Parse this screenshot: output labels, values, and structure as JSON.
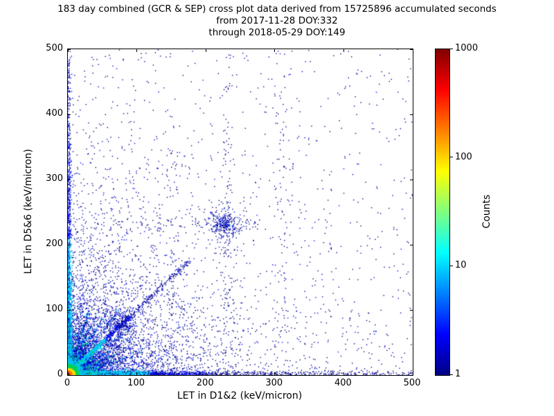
{
  "chart_data": {
    "type": "scatter",
    "title": "183 day combined (GCR & SEP) cross plot data derived from 15725896 accumulated seconds",
    "subtitle1": "from 2017-11-28 DOY:332",
    "subtitle2": "through 2018-05-29 DOY:149",
    "period_days": 183,
    "accumulated_seconds": 15725896,
    "date_from": "2017-11-28 DOY:332",
    "date_through": "2018-05-29 DOY:149",
    "xlabel": "LET in D1&2 (keV/micron)",
    "ylabel": "LET in D5&6 (keV/micron)",
    "xlim": [
      0,
      500
    ],
    "ylim": [
      0,
      500
    ],
    "xticks": [
      0,
      100,
      200,
      300,
      400,
      500
    ],
    "yticks": [
      0,
      100,
      200,
      300,
      400,
      500
    ],
    "grid": false,
    "colorbar": {
      "label": "Counts",
      "scale": "log",
      "min": 1,
      "max": 1000,
      "ticks": [
        1,
        10,
        100,
        1000
      ],
      "colormap": "jet"
    },
    "seed": 1234,
    "palette": {
      "navy": "#00008c",
      "blue": "#0010f0",
      "cyan": "#00c8ee",
      "green": "#00d455",
      "yellow": "#ffe000",
      "orange": "#ff7f00",
      "red": "#ee1100",
      "darkred": "#a80000"
    },
    "features": [
      {
        "name": "background-sparse",
        "kind": "uniform",
        "n": 650,
        "x0": 0,
        "x1": 500,
        "y0": 0,
        "y1": 500,
        "colors": [
          [
            "navy",
            0.85
          ],
          [
            "blue",
            0.15
          ]
        ]
      },
      {
        "name": "falloff-broad",
        "kind": "exp2d",
        "n": 2600,
        "scale_x": 115,
        "scale_y": 115,
        "colors": [
          [
            "navy",
            0.8
          ],
          [
            "blue",
            0.2
          ]
        ]
      },
      {
        "name": "falloff-mid",
        "kind": "exp2d",
        "n": 1500,
        "scale_x": 48,
        "scale_y": 48,
        "colors": [
          [
            "navy",
            0.55
          ],
          [
            "blue",
            0.45
          ]
        ]
      },
      {
        "name": "origin-fan",
        "kind": "exp2d",
        "n": 1200,
        "scale_x": 26,
        "scale_y": 26,
        "colors": [
          [
            "blue",
            0.5
          ],
          [
            "navy",
            0.3
          ],
          [
            "cyan",
            0.2
          ]
        ]
      },
      {
        "name": "x-axis-band",
        "kind": "band_x",
        "n": 2200,
        "scale": 70,
        "sigma": 3.2,
        "thresholds": [
          [
            22,
            "green"
          ],
          [
            120,
            "cyan"
          ],
          [
            210,
            "blue"
          ],
          [
            9999,
            "navy"
          ]
        ]
      },
      {
        "name": "x-axis-tail",
        "kind": "hline",
        "n": 350,
        "y": 2.5,
        "sigma": 2,
        "x0": 0,
        "x1": 500,
        "colors": [
          [
            "navy",
            1
          ]
        ]
      },
      {
        "name": "y-axis-band",
        "kind": "band_y",
        "n": 1800,
        "scale": 95,
        "sigma": 2.8,
        "thresholds": [
          [
            18,
            "green"
          ],
          [
            210,
            "cyan"
          ],
          [
            360,
            "blue"
          ],
          [
            9999,
            "navy"
          ]
        ]
      },
      {
        "name": "y-axis-tail",
        "kind": "vline",
        "n": 300,
        "x": 1.5,
        "sigma": 1.2,
        "y0": 0,
        "y1": 500,
        "colors": [
          [
            "blue",
            0.5
          ],
          [
            "navy",
            0.5
          ]
        ]
      },
      {
        "name": "ray-below-1",
        "kind": "ray",
        "n": 250,
        "slope": 0.3,
        "scale": 30,
        "cap": 100,
        "sigma": 1.2,
        "colors": [
          [
            "cyan",
            0.25
          ],
          [
            "blue",
            0.4
          ],
          [
            "navy",
            0.35
          ]
        ]
      },
      {
        "name": "ray-below-2",
        "kind": "ray",
        "n": 250,
        "slope": 0.45,
        "scale": 30,
        "cap": 95,
        "sigma": 1.2,
        "colors": [
          [
            "cyan",
            0.25
          ],
          [
            "blue",
            0.4
          ],
          [
            "navy",
            0.35
          ]
        ]
      },
      {
        "name": "ray-below-3",
        "kind": "ray",
        "n": 250,
        "slope": 0.6,
        "scale": 30,
        "cap": 95,
        "sigma": 1.2,
        "colors": [
          [
            "cyan",
            0.25
          ],
          [
            "blue",
            0.4
          ],
          [
            "navy",
            0.35
          ]
        ]
      },
      {
        "name": "ray-below-4",
        "kind": "ray",
        "n": 250,
        "slope": 0.78,
        "scale": 30,
        "cap": 95,
        "sigma": 1.2,
        "colors": [
          [
            "cyan",
            0.25
          ],
          [
            "blue",
            0.4
          ],
          [
            "navy",
            0.35
          ]
        ]
      },
      {
        "name": "ray-above-1",
        "kind": "ray",
        "n": 230,
        "slope": 1.35,
        "scale": 22,
        "cap": 74,
        "sigma": 1.0,
        "colors": [
          [
            "cyan",
            0.25
          ],
          [
            "blue",
            0.4
          ],
          [
            "navy",
            0.35
          ]
        ]
      },
      {
        "name": "ray-above-2",
        "kind": "ray",
        "n": 230,
        "slope": 1.7,
        "scale": 22,
        "cap": 59,
        "sigma": 1.0,
        "colors": [
          [
            "cyan",
            0.25
          ],
          [
            "blue",
            0.4
          ],
          [
            "navy",
            0.35
          ]
        ]
      },
      {
        "name": "ray-above-3",
        "kind": "ray",
        "n": 230,
        "slope": 2.2,
        "scale": 20,
        "cap": 45,
        "sigma": 1.0,
        "colors": [
          [
            "cyan",
            0.25
          ],
          [
            "blue",
            0.4
          ],
          [
            "navy",
            0.35
          ]
        ]
      },
      {
        "name": "ray-above-4",
        "kind": "ray",
        "n": 230,
        "slope": 3.2,
        "scale": 18,
        "cap": 31,
        "sigma": 1.0,
        "colors": [
          [
            "cyan",
            0.25
          ],
          [
            "blue",
            0.4
          ],
          [
            "navy",
            0.35
          ]
        ]
      },
      {
        "name": "main-diagonal",
        "kind": "diag",
        "n": 1600,
        "slope": 1,
        "scale": 26,
        "cap": 92,
        "sigma": 1.6,
        "thresholds": [
          [
            7,
            "yellow"
          ],
          [
            16,
            "green"
          ],
          [
            55,
            "cyan"
          ],
          [
            9999,
            "blue"
          ]
        ]
      },
      {
        "name": "diagonal-extension",
        "kind": "diag_u",
        "n": 260,
        "slope": 1,
        "t0": 60,
        "t1": 175,
        "sigma": 2.2,
        "colors": [
          [
            "navy",
            0.7
          ],
          [
            "blue",
            0.3
          ]
        ]
      },
      {
        "name": "diagonal-blob",
        "kind": "gauss",
        "n": 220,
        "cx": 76,
        "cy": 79,
        "sx": 11,
        "sy": 11,
        "colors": [
          [
            "navy",
            0.6
          ],
          [
            "blue",
            0.4
          ]
        ]
      },
      {
        "name": "mid-cluster",
        "kind": "gauss",
        "n": 240,
        "cx": 227,
        "cy": 232,
        "sx": 14,
        "sy": 14,
        "colors": [
          [
            "navy",
            0.75
          ],
          [
            "blue",
            0.25
          ]
        ]
      },
      {
        "name": "mid-cluster-core",
        "kind": "gauss",
        "n": 80,
        "cx": 227,
        "cy": 232,
        "sx": 6,
        "sy": 6,
        "colors": [
          [
            "blue",
            0.6
          ],
          [
            "navy",
            0.3
          ],
          [
            "cyan",
            0.1
          ]
        ]
      },
      {
        "name": "vertical-streak-230",
        "kind": "vline",
        "n": 110,
        "x": 232,
        "sigma": 5,
        "y0": 0,
        "y1": 500,
        "colors": [
          [
            "navy",
            1
          ]
        ]
      },
      {
        "name": "vertical-streak-310",
        "kind": "vline",
        "n": 70,
        "x": 310,
        "sigma": 6,
        "y0": 60,
        "y1": 500,
        "colors": [
          [
            "navy",
            1
          ]
        ]
      },
      {
        "name": "vertical-streak-150",
        "kind": "vline",
        "n": 60,
        "x": 152,
        "sigma": 4,
        "y0": 0,
        "y1": 350,
        "colors": [
          [
            "navy",
            1
          ]
        ]
      },
      {
        "name": "horizontal-streak-230",
        "kind": "hline",
        "n": 70,
        "y": 232,
        "sigma": 5,
        "x0": 60,
        "x1": 300,
        "colors": [
          [
            "navy",
            1
          ]
        ]
      },
      {
        "name": "warm-halo",
        "kind": "exp2d",
        "n": 700,
        "scale_x": 12,
        "scale_y": 12,
        "colors": [
          [
            "cyan",
            0.5
          ],
          [
            "green",
            0.3
          ],
          [
            "blue",
            0.2
          ]
        ]
      },
      {
        "name": "hot-core",
        "kind": "hot_core",
        "n": 2400,
        "scale": 5,
        "size": 1.6,
        "thresholds": [
          [
            2.2,
            "darkred"
          ],
          [
            4,
            "red"
          ],
          [
            7,
            "orange"
          ],
          [
            11,
            "yellow"
          ],
          [
            17,
            "green"
          ],
          [
            9999,
            "cyan"
          ]
        ]
      }
    ]
  }
}
